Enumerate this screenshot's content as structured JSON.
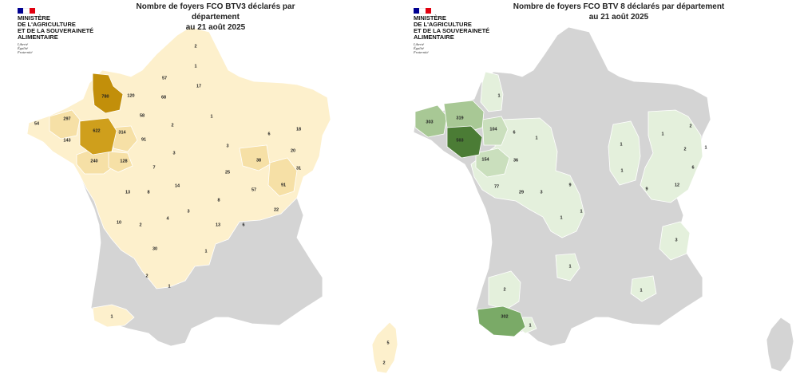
{
  "colors": {
    "grey": "#d4d4d4",
    "btv3_palette": [
      "#fdf0cc",
      "#f6e0a6",
      "#e6c15c",
      "#cf9f1c",
      "#c28f0a"
    ],
    "btv8_palette": [
      "#e4f0dc",
      "#cadfbd",
      "#a8c895",
      "#7aaa67",
      "#4b7c35"
    ]
  },
  "logo": {
    "ministry_lines": [
      "MINISTÈRE",
      "DE L'AGRICULTURE",
      "ET DE LA SOUVERAINETÉ",
      "ALIMENTAIRE"
    ],
    "motto": [
      "Liberté",
      "Égalité",
      "Fraternité"
    ]
  },
  "maps": [
    {
      "title_line1": "Nombre de foyers FCO BTV3 déclarés par département",
      "title_line2": "au 21 août 2025",
      "labels": [
        "2",
        "1",
        "57",
        "17",
        "68",
        "780",
        "120",
        "58",
        "1",
        "2",
        "297",
        "54",
        "622",
        "314",
        "91",
        "143",
        "240",
        "128",
        "7",
        "3",
        "3",
        "6",
        "18",
        "20",
        "38",
        "25",
        "31",
        "91",
        "57",
        "22",
        "13",
        "8",
        "14",
        "10",
        "4",
        "3",
        "8",
        "2",
        "13",
        "6",
        "30",
        "1",
        "2",
        "1",
        "1",
        "5",
        "2"
      ]
    },
    {
      "title_line1": "Nombre de foyers FCO BTV 8 déclarés par département",
      "title_line2": "au 21 août 2025",
      "labels": [
        "1",
        "303",
        "319",
        "104",
        "6",
        "1",
        "503",
        "154",
        "36",
        "77",
        "29",
        "3",
        "9",
        "1",
        "1",
        "1",
        "2",
        "1",
        "2",
        "1",
        "6",
        "1",
        "9",
        "12",
        "3",
        "1",
        "1",
        "2",
        "302",
        "1"
      ]
    }
  ]
}
